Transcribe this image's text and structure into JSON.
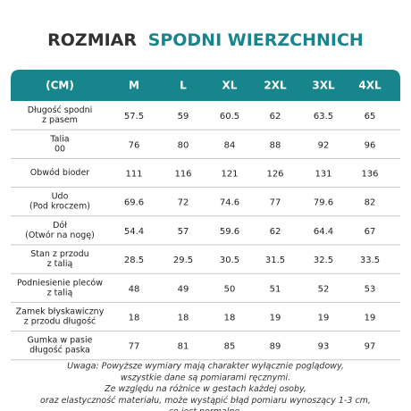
{
  "header": {
    "title": [
      "ROZMIAR",
      "SPODNI WIERZCHNICH"
    ]
  },
  "table": {
    "columns": [
      "(CM)",
      "M",
      "L",
      "XL",
      "2XL",
      "3XL",
      "4XL"
    ],
    "rows": [
      {
        "label": [
          "Długość spodni",
          "z pasem"
        ],
        "values": [
          57.5,
          59,
          60.5,
          62,
          63.5,
          65
        ]
      },
      {
        "label": [
          "Talia",
          "00"
        ],
        "values": [
          76,
          80,
          84,
          88,
          92,
          96
        ]
      },
      {
        "label": [
          "Obwód bioder"
        ],
        "values": [
          111,
          116,
          121,
          126,
          131,
          136
        ]
      },
      {
        "label": [
          "Udo",
          "(Pod kroczem)"
        ],
        "values": [
          69.6,
          72,
          74.6,
          77,
          79.6,
          82
        ]
      },
      {
        "label": [
          "Dół",
          "(Otwór na nogę)"
        ],
        "values": [
          54.4,
          57,
          59.6,
          62,
          64.4,
          67
        ]
      },
      {
        "label": [
          "Stan z przodu",
          "z talią"
        ],
        "values": [
          28.5,
          29.5,
          30.5,
          31.5,
          32.5,
          33.5
        ]
      },
      {
        "label": [
          "Podniesienie pleców",
          "z talią"
        ],
        "values": [
          48,
          49,
          50,
          51,
          52,
          53
        ]
      },
      {
        "label": [
          "Zamek błyskawiczny",
          "z przodu długość"
        ],
        "values": [
          18,
          18,
          18,
          19,
          19,
          19
        ]
      },
      {
        "label": [
          "Gumka w pasie",
          "długość paska"
        ],
        "values": [
          77,
          81,
          85,
          89,
          93,
          97
        ]
      }
    ]
  },
  "note": [
    "Uwaga: Powyższe wymiary mają charakter wyłącznie poglądowy,",
    "wszystkie dane są pomiarami ręcznymi.",
    "Ze względu na różnice w gestach każdej osoby,",
    "oraz elastyczność materiału, może wystąpić błąd pomiaru wynoszący 1-3 cm,",
    "co jest normalne."
  ]
}
